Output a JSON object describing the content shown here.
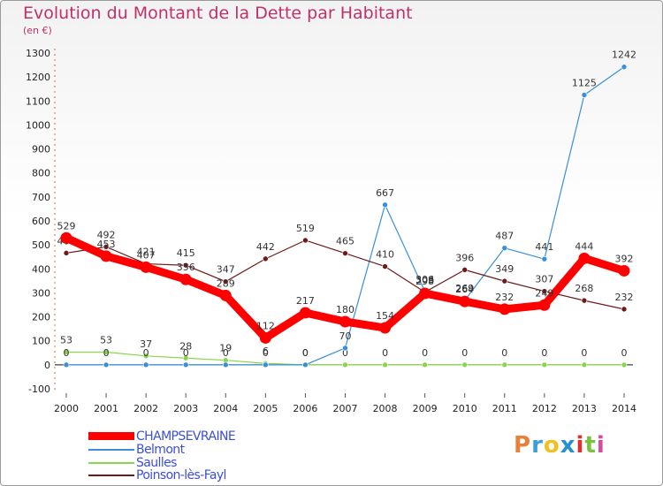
{
  "header": {
    "title": "Evolution du Montant de la Dette par Habitant",
    "subtitle": "(en €)"
  },
  "logo": {
    "text": "Proxiti",
    "colors": [
      "#e8803a",
      "#3aa0d8",
      "#f0c020",
      "#2a8fd0",
      "#e03030",
      "#7cc040",
      "#d84aa0"
    ]
  },
  "chart_data": {
    "type": "line",
    "title": "Evolution du Montant de la Dette par Habitant",
    "subtitle": "(en €)",
    "xlabel": "",
    "ylabel": "",
    "x": [
      "2000",
      "2001",
      "2002",
      "2003",
      "2004",
      "2005",
      "2006",
      "2007",
      "2008",
      "2009",
      "2010",
      "2011",
      "2012",
      "2013",
      "2014"
    ],
    "ylim": [
      -100,
      1300
    ],
    "yticks": [
      -100,
      0,
      100,
      200,
      300,
      400,
      500,
      600,
      700,
      800,
      900,
      1000,
      1100,
      1200,
      1300
    ],
    "grid": false,
    "legend_position": "bottom-left",
    "series": [
      {
        "name": "CHAMPSEVRAINE",
        "color": "#ff0000",
        "values": [
          529,
          453,
          407,
          356,
          289,
          112,
          217,
          180,
          154,
          298,
          264,
          232,
          249,
          444,
          392
        ]
      },
      {
        "name": "Belmont",
        "color": "#3a8fd8",
        "values": [
          0,
          0,
          0,
          0,
          0,
          0,
          0,
          70,
          667,
          306,
          269,
          487,
          441,
          1125,
          1242
        ]
      },
      {
        "name": "Saulles",
        "color": "#8ad64a",
        "values": [
          53,
          53,
          37,
          28,
          19,
          6,
          0,
          0,
          0,
          0,
          0,
          0,
          0,
          0,
          0
        ]
      },
      {
        "name": "Poinson-lès-Fayl",
        "color": "#6e1a1a",
        "values": [
          466,
          492,
          421,
          415,
          347,
          442,
          519,
          465,
          410,
          303,
          396,
          349,
          307,
          268,
          232
        ]
      }
    ]
  }
}
